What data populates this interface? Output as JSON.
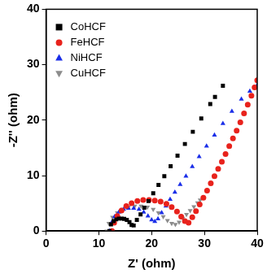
{
  "chart_data": {
    "type": "scatter",
    "x_label": "Z' (ohm)",
    "y_label": "-Z'' (ohm)",
    "xlim": [
      0,
      40
    ],
    "xticks": [
      0,
      10,
      20,
      30,
      40
    ],
    "ylim": [
      0,
      40
    ],
    "yticks": [
      0,
      10,
      20,
      30,
      40
    ],
    "grid": false,
    "legend": "top-left",
    "series": [
      {
        "name": "CoHCF",
        "color": "#000000",
        "marker": "square",
        "x": [
          12.0,
          12.3,
          12.8,
          13.3,
          13.8,
          14.3,
          14.8,
          15.3,
          15.8,
          16.2,
          16.6,
          17.2,
          17.9,
          18.6,
          19.4,
          20.3,
          21.3,
          22.4,
          23.6,
          24.9,
          26.3,
          27.8,
          29.4,
          31.1,
          32.0,
          33.5
        ],
        "values": [
          0,
          1.2,
          1.8,
          2.1,
          2.25,
          2.25,
          2.2,
          2.0,
          1.6,
          1.1,
          1.0,
          2.0,
          3.0,
          4.2,
          5.4,
          6.8,
          8.3,
          9.9,
          11.7,
          13.6,
          15.7,
          17.9,
          20.3,
          22.9,
          24.2,
          26.2
        ]
      },
      {
        "name": "FeHCF",
        "color": "#e8221c",
        "marker": "circle",
        "x": [
          12.5,
          12.9,
          13.5,
          14.3,
          15.2,
          16.2,
          17.3,
          18.4,
          19.5,
          20.6,
          21.7,
          22.8,
          23.8,
          24.8,
          25.6,
          26.3,
          27.0,
          27.7,
          28.4,
          29.1,
          29.8,
          30.5,
          31.2,
          31.9,
          32.6,
          33.3,
          34.0,
          34.7,
          35.4,
          36.1,
          36.8,
          37.5,
          38.2,
          38.9,
          39.5,
          40.0
        ],
        "values": [
          0,
          1.5,
          2.7,
          3.7,
          4.5,
          5.0,
          5.4,
          5.6,
          5.6,
          5.5,
          5.3,
          4.9,
          4.3,
          3.5,
          2.6,
          1.8,
          1.5,
          2.5,
          3.6,
          4.8,
          6.0,
          7.3,
          8.6,
          9.9,
          11.2,
          12.5,
          13.9,
          15.3,
          16.7,
          18.1,
          19.6,
          21.2,
          22.8,
          24.4,
          25.9,
          27.2
        ]
      },
      {
        "name": "NiHCF",
        "color": "#1a2ee8",
        "marker": "triangle-up",
        "x": [
          12.0,
          12.4,
          13.0,
          13.8,
          14.7,
          15.6,
          16.6,
          17.6,
          18.5,
          19.3,
          20.0,
          20.6,
          21.2,
          21.9,
          22.7,
          23.5,
          24.4,
          25.4,
          26.5,
          27.7,
          29.0,
          30.4,
          31.9,
          33.5,
          35.2,
          37.0,
          38.6,
          40.0
        ],
        "values": [
          0,
          1.5,
          2.6,
          3.4,
          3.9,
          4.1,
          4.1,
          3.9,
          3.4,
          2.7,
          2.0,
          1.7,
          2.2,
          3.3,
          4.5,
          5.7,
          7.0,
          8.4,
          9.9,
          11.6,
          13.4,
          15.3,
          17.3,
          19.4,
          21.6,
          23.8,
          25.2,
          26.3
        ]
      },
      {
        "name": "CuHCF",
        "color": "#8c8c8c",
        "marker": "triangle-down",
        "x": [
          11.5,
          11.9,
          12.6,
          13.5,
          14.5,
          15.6,
          16.8,
          18.0,
          19.2,
          20.3,
          21.3,
          22.2,
          23.0,
          23.8,
          24.5,
          25.2,
          25.9,
          26.6,
          27.3,
          28.0,
          28.7,
          29.2
        ],
        "values": [
          0,
          1.4,
          2.5,
          3.3,
          3.9,
          4.3,
          4.5,
          4.5,
          4.3,
          3.9,
          3.3,
          2.6,
          1.9,
          1.4,
          1.2,
          1.6,
          2.3,
          3.0,
          3.7,
          4.4,
          5.1,
          5.6
        ]
      }
    ]
  }
}
